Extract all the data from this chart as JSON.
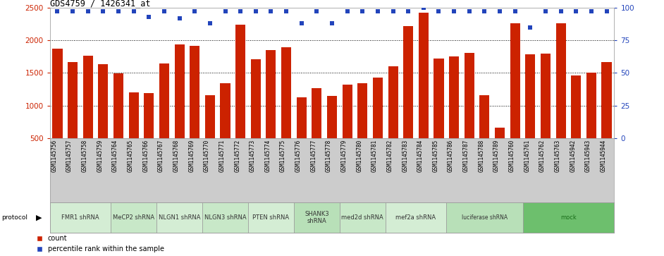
{
  "title": "GDS4759 / 1426341_at",
  "samples": [
    "GSM1145756",
    "GSM1145757",
    "GSM1145758",
    "GSM1145759",
    "GSM1145764",
    "GSM1145765",
    "GSM1145766",
    "GSM1145767",
    "GSM1145768",
    "GSM1145769",
    "GSM1145770",
    "GSM1145771",
    "GSM1145772",
    "GSM1145773",
    "GSM1145774",
    "GSM1145775",
    "GSM1145776",
    "GSM1145777",
    "GSM1145778",
    "GSM1145779",
    "GSM1145780",
    "GSM1145781",
    "GSM1145782",
    "GSM1145783",
    "GSM1145784",
    "GSM1145785",
    "GSM1145786",
    "GSM1145787",
    "GSM1145788",
    "GSM1145789",
    "GSM1145760",
    "GSM1145761",
    "GSM1145762",
    "GSM1145763",
    "GSM1145942",
    "GSM1145943",
    "GSM1145944"
  ],
  "bar_values": [
    1870,
    1670,
    1760,
    1635,
    1490,
    1205,
    1195,
    1640,
    1935,
    1920,
    1155,
    1340,
    2240,
    1715,
    1855,
    1890,
    1130,
    1265,
    1150,
    1320,
    1340,
    1430,
    1605,
    2220,
    2420,
    1720,
    1750,
    1810,
    1155,
    665,
    2260,
    1790,
    1800,
    2260,
    1460,
    1500,
    1670
  ],
  "blue_values": [
    97,
    97,
    97,
    97,
    97,
    97,
    93,
    97,
    92,
    97,
    88,
    97,
    97,
    97,
    97,
    97,
    88,
    97,
    88,
    97,
    97,
    97,
    97,
    97,
    100,
    97,
    97,
    97,
    97,
    97,
    97,
    85,
    97,
    97,
    97,
    97,
    97
  ],
  "protocols": [
    {
      "label": "FMR1 shRNA",
      "start": 0,
      "end": 4,
      "color": "#d4edd4"
    },
    {
      "label": "MeCP2 shRNA",
      "start": 4,
      "end": 7,
      "color": "#c8e8c8"
    },
    {
      "label": "NLGN1 shRNA",
      "start": 7,
      "end": 10,
      "color": "#d4edd4"
    },
    {
      "label": "NLGN3 shRNA",
      "start": 10,
      "end": 13,
      "color": "#c8e8c8"
    },
    {
      "label": "PTEN shRNA",
      "start": 13,
      "end": 16,
      "color": "#d4edd4"
    },
    {
      "label": "SHANK3\nshRNA",
      "start": 16,
      "end": 19,
      "color": "#b8e0b8"
    },
    {
      "label": "med2d shRNA",
      "start": 19,
      "end": 22,
      "color": "#c8e8c8"
    },
    {
      "label": "mef2a shRNA",
      "start": 22,
      "end": 26,
      "color": "#d4edd4"
    },
    {
      "label": "luciferase shRNA",
      "start": 26,
      "end": 31,
      "color": "#b8e0b8"
    },
    {
      "label": "mock",
      "start": 31,
      "end": 37,
      "color": "#6dbf6d"
    }
  ],
  "ylim_left": [
    500,
    2500
  ],
  "ylim_right": [
    0,
    100
  ],
  "yticks_left": [
    500,
    1000,
    1500,
    2000,
    2500
  ],
  "yticks_right": [
    0,
    25,
    50,
    75,
    100
  ],
  "bar_color": "#cc2200",
  "dot_color": "#2244bb",
  "tick_bg_color": "#cccccc",
  "plot_bg": "#ffffff",
  "gridline_vals": [
    1000,
    1500,
    2000
  ]
}
